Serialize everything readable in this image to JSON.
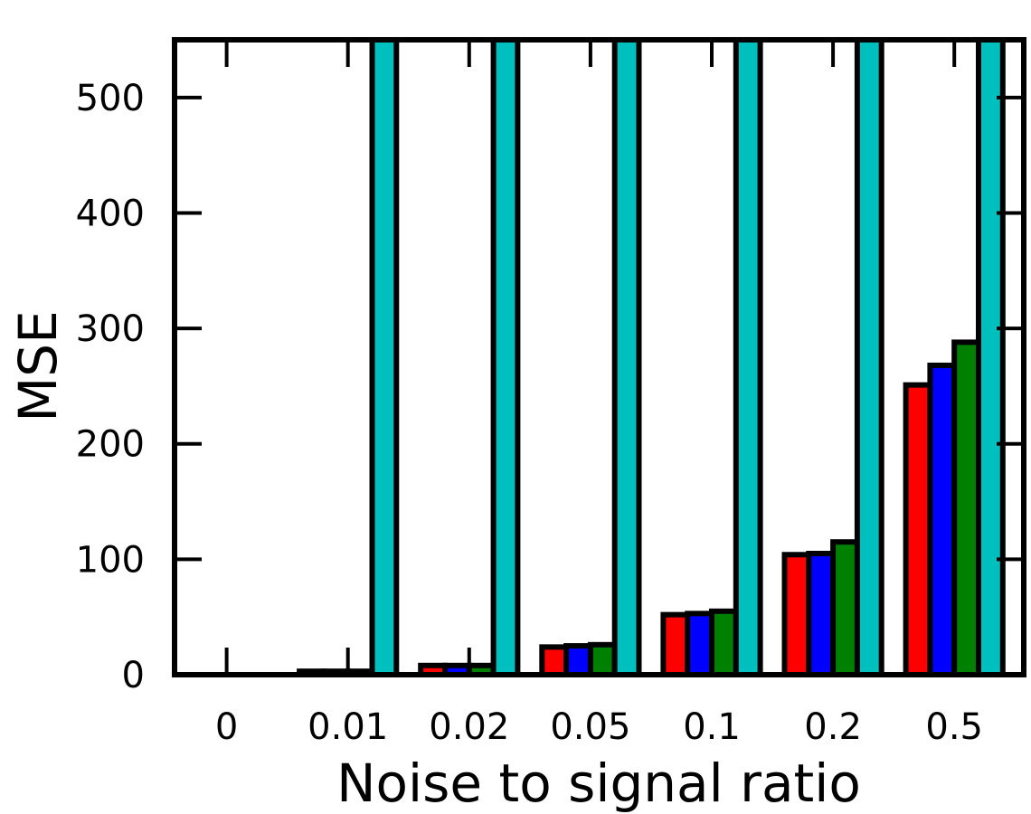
{
  "chart_data": {
    "type": "bar",
    "xlabel": "Noise to signal ratio",
    "ylabel": "MSE",
    "categories": [
      "0",
      "0.01",
      "0.02",
      "0.05",
      "0.1",
      "0.2",
      "0.5"
    ],
    "ylim": [
      0,
      550
    ],
    "yticks": [
      0,
      100,
      200,
      300,
      400,
      500
    ],
    "grid": false,
    "series": [
      {
        "color": "#ff0000",
        "values": [
          0,
          3,
          8,
          24,
          52,
          104,
          251
        ]
      },
      {
        "color": "#0000ff",
        "values": [
          0,
          3,
          8,
          25,
          53,
          105,
          268
        ]
      },
      {
        "color": "#008000",
        "values": [
          0,
          3,
          8,
          26,
          55,
          115,
          288
        ]
      },
      {
        "color": "#00bfbf",
        "values": [
          0,
          550,
          550,
          550,
          550,
          550,
          550
        ]
      }
    ]
  }
}
